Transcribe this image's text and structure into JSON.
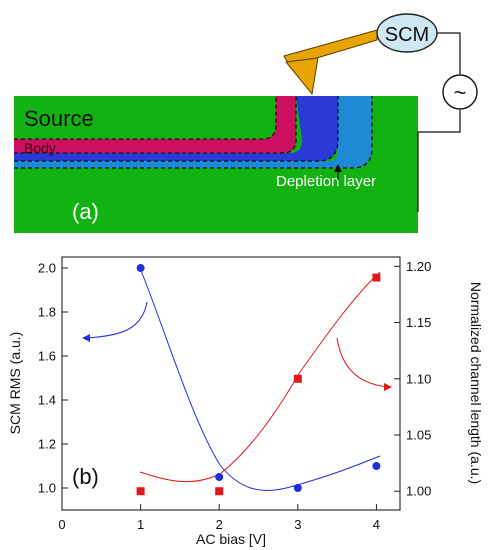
{
  "diagram_a": {
    "panel_label": "(a)",
    "labels": {
      "source": "Source",
      "body": "Body",
      "depletion": "Depletion layer",
      "scm": "SCM",
      "ac_source": "~"
    },
    "colors": {
      "substrate": "#12b212",
      "body": "#cc1060",
      "depletion_dark": "#2a3ad6",
      "depletion_light": "#1e8ad6",
      "probe": "#e8a400",
      "scm_fill": "#cfe6f3"
    }
  },
  "chart_data": {
    "type": "scatter",
    "panel_label": "(b)",
    "xlabel": "AC bias [V]",
    "ylabel_left": "SCM RMS (a.u.)",
    "ylabel_right": "Normalized channel length (a.u.)",
    "xlim": [
      0,
      4.3
    ],
    "ylim_left": [
      0.9,
      2.05
    ],
    "ylim_right": [
      0.9833,
      1.2083
    ],
    "x_ticks": [
      0,
      1,
      2,
      3,
      4
    ],
    "x_tick_labels": [
      "0",
      "1",
      "2",
      "3",
      "4"
    ],
    "y_left_ticks": [
      1.0,
      1.2,
      1.4,
      1.6,
      1.8,
      2.0
    ],
    "y_left_tick_labels": [
      "1.0",
      "1.2",
      "1.4",
      "1.6",
      "1.8",
      "2.0"
    ],
    "y_right_ticks": [
      1.0,
      1.05,
      1.1,
      1.15,
      1.2
    ],
    "y_right_tick_labels": [
      "1.00",
      "1.05",
      "1.10",
      "1.15",
      "1.20"
    ],
    "series": [
      {
        "axis": "left",
        "marker": "circle",
        "color": "#1f2fe0",
        "x": [
          1,
          2,
          3,
          4
        ],
        "y": [
          2.0,
          1.05,
          1.0,
          1.1
        ]
      },
      {
        "axis": "right",
        "marker": "square",
        "color": "#e01818",
        "x": [
          1,
          2,
          3,
          4
        ],
        "y": [
          1.0,
          1.0,
          1.1,
          1.19
        ]
      }
    ],
    "grid": false
  }
}
